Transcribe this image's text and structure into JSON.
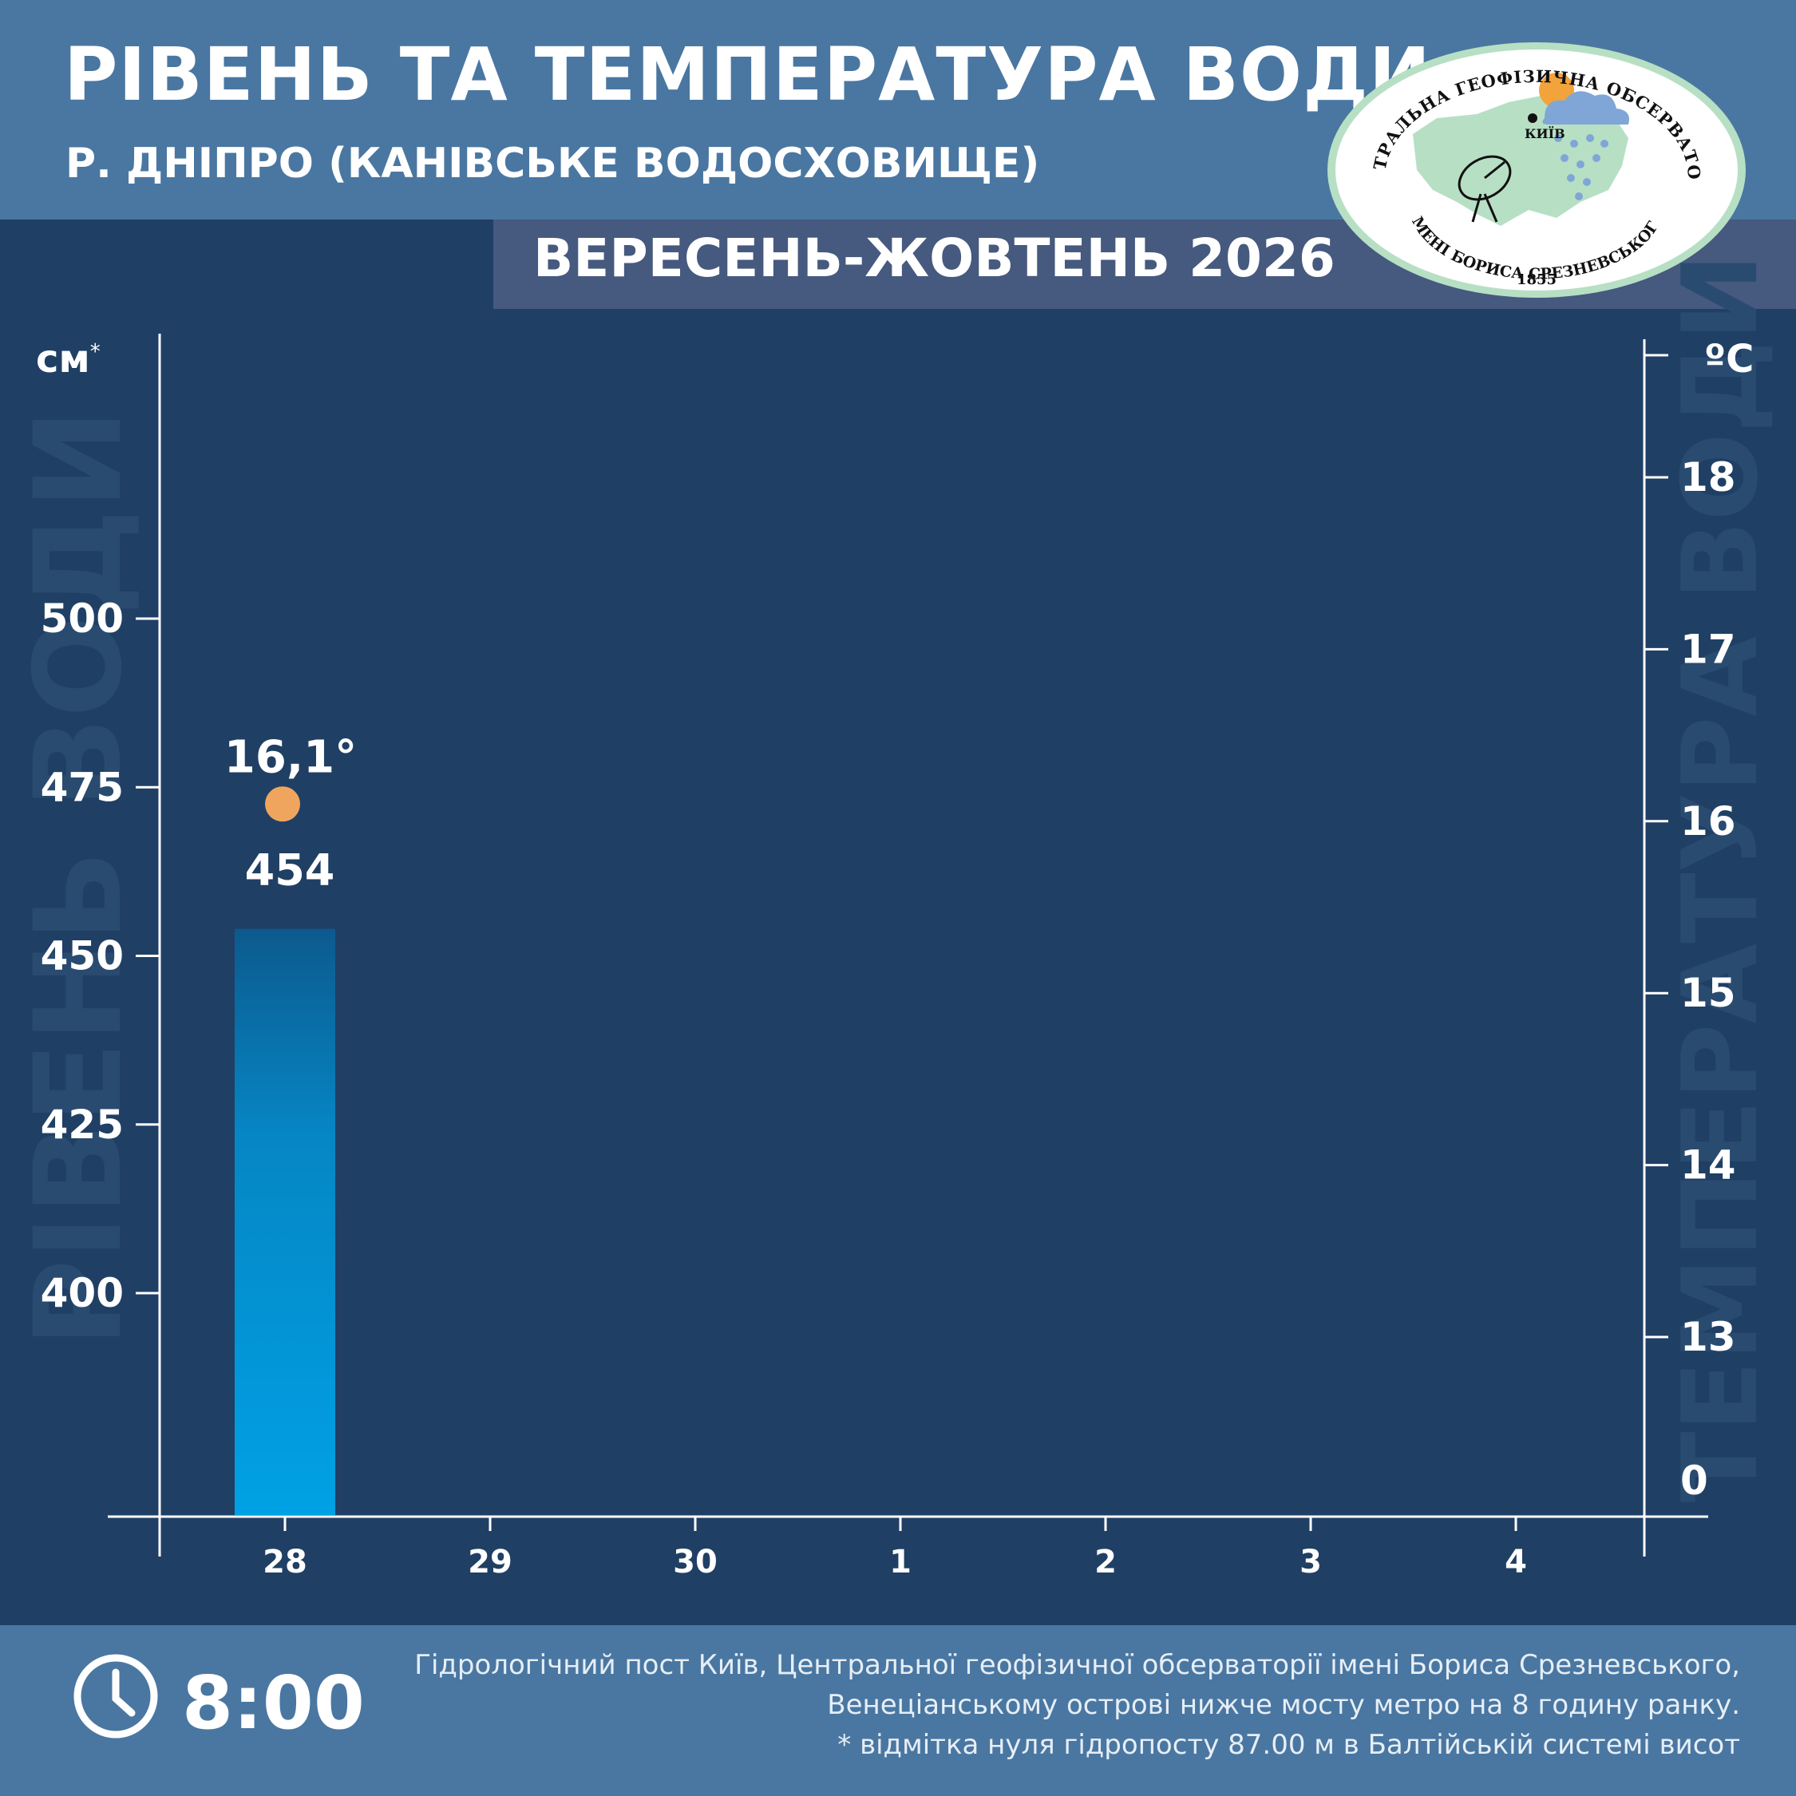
{
  "header": {
    "title": "РІВЕНЬ ТА ТЕМПЕРАТУРА ВОДИ",
    "subtitle": "Р. ДНІПРО (КАНІВСЬКЕ ВОДОСХОВИЩЕ)",
    "period": "ВЕРЕСЕНЬ-ЖОВТЕНЬ 2026"
  },
  "logo": {
    "top_text": "ЦЕНТРАЛЬНА ГЕОФІЗИЧНА ОБСЕРВАТОРІЯ",
    "bottom_text": "ІМЕНІ БОРИСА СРЕЗНЕВСЬКОГО",
    "year": "1855",
    "city": "КИЇВ"
  },
  "chart_data": {
    "type": "bar",
    "categories": [
      "28",
      "29",
      "30",
      "1",
      "2",
      "3",
      "4"
    ],
    "series": [
      {
        "values": [
          454,
          null,
          null,
          null,
          null,
          null,
          null
        ]
      }
    ],
    "temperature": [
      16.1,
      null,
      null,
      null,
      null,
      null,
      null
    ],
    "temperature_label": "16,1°",
    "level_label": "454",
    "left_axis": {
      "unit": "см",
      "unit_mark": "*",
      "title": "РІВЕНЬ ВОДИ",
      "ticks": [
        400,
        425,
        450,
        475,
        500
      ],
      "ylim": [
        370,
        540
      ]
    },
    "right_axis": {
      "unit": "ºC",
      "title": "ТЕМПЕРАТУРА ВОДИ",
      "ticks": [
        0,
        13,
        14,
        15,
        16,
        17,
        18
      ]
    },
    "colors": {
      "bar_top": "#0c5a8e",
      "bar_bottom": "#00a1e5",
      "temperature_point": "#f0a55e",
      "background": "#203f64"
    }
  },
  "footer": {
    "time": "8:00",
    "note_lines": [
      "Гідрологічний пост Київ, Центральної геофізичної обсерваторії імені Бориса Срезневського,",
      "Венеціанському острові нижче мосту метро  на 8 годину ранку.",
      "* відмітка нуля гідропосту 87.00 м в Балтійській системі висот"
    ]
  }
}
